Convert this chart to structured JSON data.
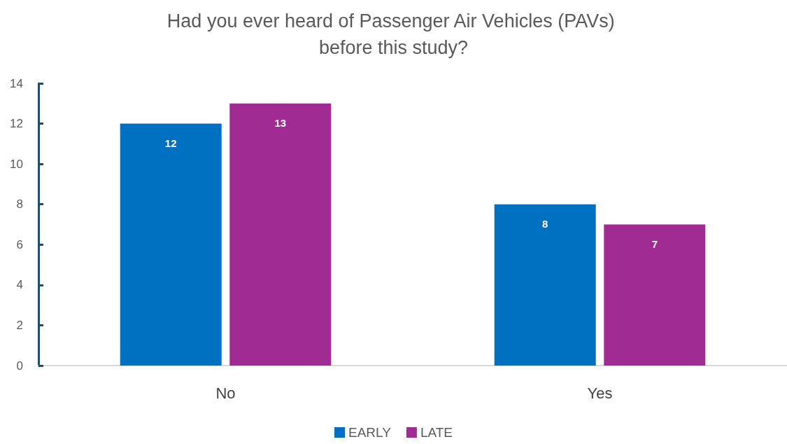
{
  "chart_data": {
    "type": "bar",
    "title": "Had you ever heard of Passenger Air Vehicles (PAVs) before this study?",
    "categories": [
      "No",
      "Yes"
    ],
    "series": [
      {
        "name": "EARLY",
        "color": "#0070c0",
        "values": [
          12,
          8
        ]
      },
      {
        "name": "LATE",
        "color": "#a02b93",
        "values": [
          13,
          7
        ]
      }
    ],
    "ylim": [
      0,
      14
    ],
    "yticks": [
      0,
      2,
      4,
      6,
      8,
      10,
      12,
      14
    ],
    "grid": false,
    "legend": "bottom",
    "data_labels": true
  }
}
